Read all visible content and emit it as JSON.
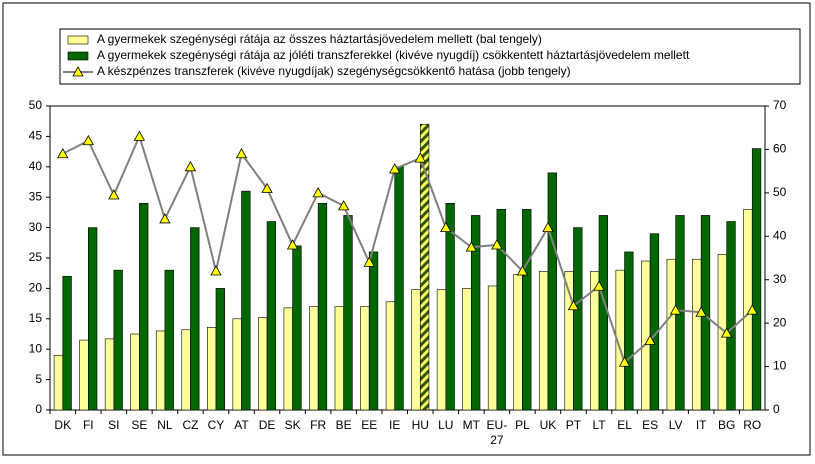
{
  "chart_data": {
    "type": "bar-line",
    "categories": [
      "DK",
      "FI",
      "SI",
      "SE",
      "NL",
      "CZ",
      "CY",
      "AT",
      "DE",
      "SK",
      "FR",
      "BE",
      "EE",
      "IE",
      "HU",
      "LU",
      "MT",
      "EU-27",
      "PL",
      "UK",
      "PT",
      "LT",
      "EL",
      "ES",
      "LV",
      "IT",
      "BG",
      "RO"
    ],
    "highlight": "HU",
    "series": [
      {
        "name": "A gyermekek szegénységi rátája az összes háztartásjövedelem mellett (bal tengely)",
        "type": "bar",
        "color": "#ffff99",
        "values": [
          9,
          11.5,
          11.7,
          12.5,
          13,
          13.2,
          13.6,
          15,
          15.2,
          16.8,
          17,
          17,
          17,
          17.8,
          19.8,
          19.8,
          20,
          20.4,
          22.3,
          22.8,
          22.8,
          22.8,
          23,
          24.5,
          24.8,
          24.8,
          25.6,
          33
        ]
      },
      {
        "name": "A gyermekek szegénységi rátája az jóléti transzferekkel (kivéve nyugdíj) csökkentett háztartásjövedelem mellett",
        "type": "bar",
        "color": "#006600",
        "values": [
          22,
          30,
          23,
          34,
          23,
          30,
          20,
          36,
          31,
          27,
          34,
          32,
          26,
          40,
          47,
          34,
          32,
          33,
          33,
          39,
          30,
          32,
          26,
          29,
          32,
          32,
          31,
          43
        ]
      },
      {
        "name": "A készpénzes transzferek (kivéve nyugdíjak) szegénységcsökkentő hatása (jobb tengely)",
        "type": "line",
        "axis": "y2",
        "color": "#808080",
        "values": [
          59,
          62,
          49.5,
          63,
          44,
          56,
          32,
          59,
          51,
          38,
          50,
          47,
          34,
          55.5,
          58,
          42,
          37.5,
          38,
          32,
          42,
          24,
          28.5,
          11,
          16,
          23,
          22.5,
          17.7,
          23
        ]
      }
    ],
    "ylim": [
      0,
      50
    ],
    "yticks": [
      0,
      5,
      10,
      15,
      20,
      25,
      30,
      35,
      40,
      45,
      50
    ],
    "y2lim": [
      0,
      70
    ],
    "y2ticks": [
      0,
      10,
      20,
      30,
      40,
      50,
      60,
      70
    ]
  }
}
